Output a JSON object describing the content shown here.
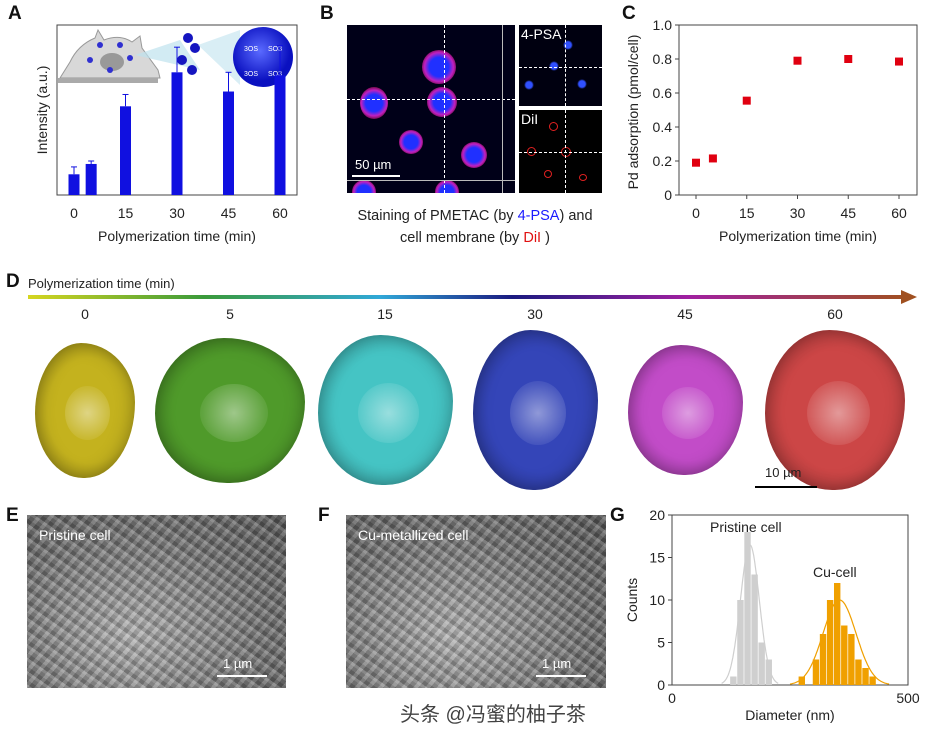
{
  "panels": {
    "A": "A",
    "B": "B",
    "C": "C",
    "D": "D",
    "E": "E",
    "F": "F",
    "G": "G"
  },
  "panel_a": {
    "chart_data": {
      "type": "bar",
      "categories": [
        "0",
        "5",
        "15",
        "30",
        "45",
        "60"
      ],
      "x": [
        0,
        5,
        15,
        30,
        45,
        60
      ],
      "values": [
        14,
        21,
        60,
        83,
        70,
        81
      ],
      "errors": [
        5,
        2,
        8,
        17,
        13,
        20
      ],
      "ylim": [
        0,
        115
      ],
      "xticks": [
        "0",
        "15",
        "30",
        "45",
        "60"
      ],
      "xtick_values": [
        0,
        15,
        30,
        45,
        60
      ],
      "xlabel": "Polymerization time (min)",
      "ylabel": "Intensity (a.u.)",
      "bar_color": "#1010e0"
    },
    "inset": {
      "so3_labels": [
        "3OS",
        "SO3",
        "3OS",
        "SO3"
      ]
    }
  },
  "panel_b": {
    "label_4psa": "4-PSA",
    "label_dil": "DiI",
    "scale": "50 µm",
    "caption_line1_pre": "Staining of PMETAC (by ",
    "caption_4psa": "4-PSA",
    "caption_line1_post": ") and",
    "caption_line2_pre": "cell membrane (by ",
    "caption_dil": "DiI",
    "caption_line2_post": " )",
    "blue": "#1a1aff",
    "red": "#e01010"
  },
  "panel_c": {
    "chart_data": {
      "type": "scatter",
      "x": [
        0,
        5,
        15,
        30,
        45,
        60
      ],
      "y": [
        0.19,
        0.215,
        0.555,
        0.79,
        0.8,
        0.785
      ],
      "xlim": [
        0,
        60
      ],
      "ylim": [
        0,
        1.0
      ],
      "xticks": [
        "0",
        "15",
        "30",
        "45",
        "60"
      ],
      "xtick_values": [
        0,
        15,
        30,
        45,
        60
      ],
      "yticks": [
        "0",
        "0.2",
        "0.4",
        "0.6",
        "0.8",
        "1.0"
      ],
      "ytick_values": [
        0,
        0.2,
        0.4,
        0.6,
        0.8,
        1.0
      ],
      "xlabel": "Polymerization time (min)",
      "ylabel": "Pd adsorption (pmol/cell)",
      "marker_color": "#e00010"
    }
  },
  "panel_d": {
    "title": "Polymerization time (min)",
    "times": [
      "0",
      "5",
      "15",
      "30",
      "45",
      "60"
    ],
    "colors": [
      "#c4b21e",
      "#4f9a2a",
      "#45c4c4",
      "#3445b8",
      "#c24cc8",
      "#cc4646"
    ],
    "scale": "10 µm"
  },
  "panel_e": {
    "label": "Pristine cell",
    "scale": "1 µm"
  },
  "panel_f": {
    "label": "Cu-metallized cell",
    "scale": "1 µm"
  },
  "panel_g": {
    "chart_data": {
      "type": "bar",
      "series": [
        {
          "name": "Pristine cell",
          "color": "#cfcfcf",
          "x": [
            130,
            145,
            160,
            175,
            190,
            205
          ],
          "values": [
            1,
            10,
            18,
            13,
            5,
            3
          ],
          "fit_mean": 165,
          "fit_peak": 16.5,
          "fit_sd": 20
        },
        {
          "name": "Cu-cell",
          "color": "#f0a000",
          "x": [
            275,
            305,
            320,
            335,
            350,
            365,
            380,
            395,
            410,
            425
          ],
          "values": [
            1,
            3,
            6,
            10,
            12,
            7,
            6,
            3,
            2,
            1
          ],
          "fit_mean": 355,
          "fit_peak": 10,
          "fit_sd": 35
        }
      ],
      "xlim": [
        0,
        500
      ],
      "ylim": [
        0,
        20
      ],
      "xticks": [
        "0",
        "500"
      ],
      "xtick_values": [
        0,
        500
      ],
      "yticks": [
        "0",
        "5",
        "10",
        "15",
        "20"
      ],
      "ytick_values": [
        0,
        5,
        10,
        15,
        20
      ],
      "xlabel": "Diameter (nm)",
      "ylabel": "Counts"
    },
    "legend_pristine": "Pristine cell",
    "legend_cu": "Cu-cell"
  },
  "watermark": "头条 @冯蜜的柚子茶"
}
